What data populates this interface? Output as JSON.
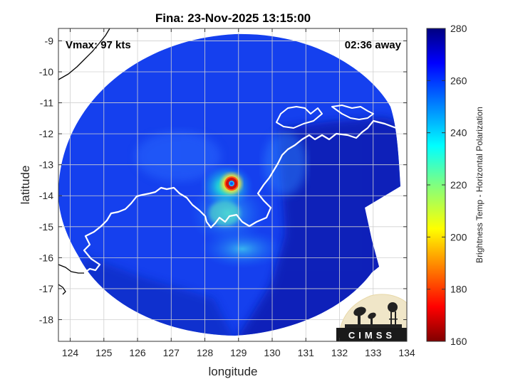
{
  "figure": {
    "title": "Fina: 23-Nov-2025 13:15:00",
    "vmax_label": "Vmax: 97 kts",
    "time_away_label": "02:36 away",
    "xlabel": "longitude",
    "ylabel": "latitude",
    "logo_text": "CIMSS"
  },
  "map": {
    "lon_range": [
      123.65,
      134.0
    ],
    "lat_range": [
      -18.7,
      -8.6
    ],
    "lon_ticks": [
      124,
      125,
      126,
      127,
      128,
      129,
      130,
      131,
      132,
      133,
      134
    ],
    "lat_ticks": [
      -9,
      -10,
      -11,
      -12,
      -13,
      -14,
      -15,
      -16,
      -17,
      -18
    ],
    "grid": true,
    "swath_center": [
      128.9,
      -13.65
    ],
    "storm_eye": [
      128.85,
      -13.65
    ],
    "coast_color": "#ffffff",
    "outer_coast_color": "#000000"
  },
  "colorbar": {
    "label": "Brightness Temp - Horizontal Polarization",
    "range": [
      160,
      280
    ],
    "ticks": [
      160,
      180,
      200,
      220,
      240,
      260,
      280
    ],
    "colormap": "jet"
  }
}
